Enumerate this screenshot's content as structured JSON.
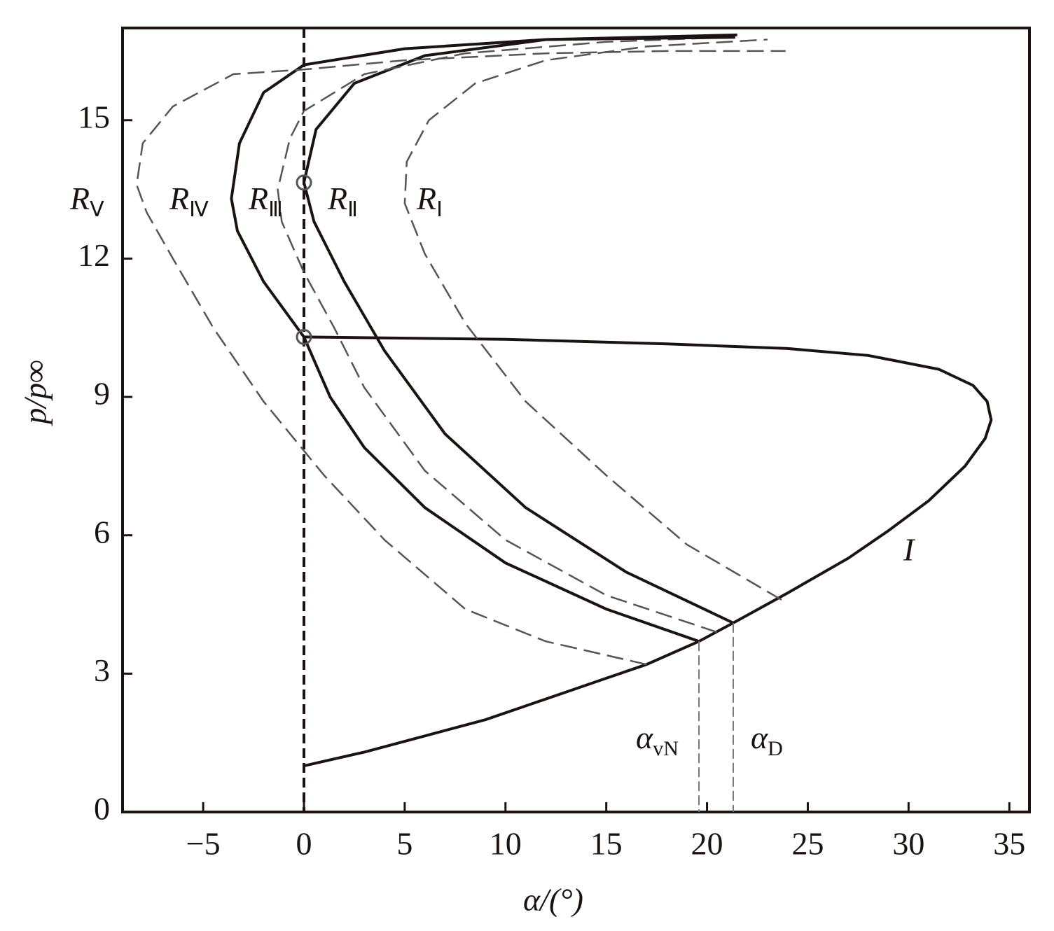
{
  "chart_data": {
    "type": "line",
    "xlabel": "α/(°)",
    "ylabel": "p/p∞",
    "xlim": [
      -9,
      36
    ],
    "ylim": [
      0,
      17
    ],
    "xticks": [
      {
        "value": -5,
        "label": "−5"
      },
      0,
      5,
      10,
      15,
      20,
      25,
      30,
      35
    ],
    "yticks": [
      0,
      3,
      6,
      9,
      12,
      15
    ],
    "x_reference": 0,
    "markers": {
      "x": [
        0,
        0
      ],
      "y": [
        13.65,
        10.3
      ]
    },
    "series": [
      {
        "name": "I",
        "color": "#1a1311",
        "style": "solid",
        "x": [
          0,
          3,
          6,
          9,
          12,
          15,
          17,
          19.6,
          21.3,
          24,
          27,
          29,
          31,
          32.8,
          33.8,
          34.1,
          33.9,
          33.2,
          31.5,
          28,
          24,
          18,
          10,
          0
        ],
        "values": [
          1.0,
          1.3,
          1.65,
          2.0,
          2.45,
          2.9,
          3.2,
          3.7,
          4.1,
          4.75,
          5.5,
          6.1,
          6.75,
          7.5,
          8.1,
          8.5,
          8.9,
          9.25,
          9.6,
          9.9,
          10.05,
          10.15,
          10.25,
          10.3
        ]
      },
      {
        "name": "RⅠ",
        "color": "#555555",
        "style": "dashed",
        "x": [
          23.7,
          19,
          15,
          11,
          8,
          6,
          5,
          5.1,
          6.2,
          8.5,
          12,
          17,
          23
        ],
        "values": [
          4.6,
          5.8,
          7.3,
          8.9,
          10.6,
          12.1,
          13.2,
          14.1,
          15.0,
          15.8,
          16.3,
          16.6,
          16.75
        ]
      },
      {
        "name": "RⅡ",
        "color": "#1a1311",
        "style": "solid",
        "x": [
          21.3,
          16,
          11,
          7,
          4,
          2,
          0.5,
          0,
          0.6,
          2.5,
          6,
          12,
          21.5
        ],
        "values": [
          4.1,
          5.2,
          6.6,
          8.2,
          10.0,
          11.5,
          12.8,
          13.65,
          14.8,
          15.8,
          16.4,
          16.75,
          16.85
        ]
      },
      {
        "name": "RⅢ",
        "color": "#555555",
        "style": "dashed",
        "x": [
          20.5,
          15,
          10,
          6,
          3,
          1.5,
          0,
          -1.1,
          -1.3,
          -0.7,
          0,
          3,
          8,
          15,
          21
        ],
        "values": [
          3.9,
          4.7,
          5.9,
          7.4,
          9.2,
          10.5,
          11.7,
          12.8,
          13.5,
          14.6,
          15.2,
          16.0,
          16.45,
          16.7,
          16.8
        ]
      },
      {
        "name": "RⅣ",
        "color": "#1a1311",
        "style": "solid",
        "x": [
          19.6,
          15,
          10,
          6,
          3,
          1.3,
          0,
          -2,
          -3.3,
          -3.6,
          -3.2,
          -2,
          0,
          5,
          12,
          21.4
        ],
        "values": [
          3.7,
          4.4,
          5.4,
          6.6,
          7.9,
          9,
          10.3,
          11.5,
          12.6,
          13.3,
          14.5,
          15.6,
          16.2,
          16.55,
          16.75,
          16.8
        ]
      },
      {
        "name": "RⅤ",
        "color": "#555555",
        "style": "dashed",
        "x": [
          17,
          12,
          8,
          4,
          1,
          -2,
          -4.5,
          -6.5,
          -7.8,
          -8.3,
          -8,
          -6.5,
          -3.5,
          0,
          5,
          12,
          18,
          23.9
        ],
        "values": [
          3.2,
          3.7,
          4.4,
          5.9,
          7.3,
          8.9,
          10.5,
          12,
          13,
          13.6,
          14.5,
          15.3,
          16.0,
          16.1,
          16.3,
          16.45,
          16.5,
          16.5
        ]
      }
    ],
    "annotations": [
      {
        "text": "αvN",
        "x": 19.6,
        "y": 3.7
      },
      {
        "text": "αD",
        "x": 21.3,
        "y": 4.1
      }
    ]
  }
}
